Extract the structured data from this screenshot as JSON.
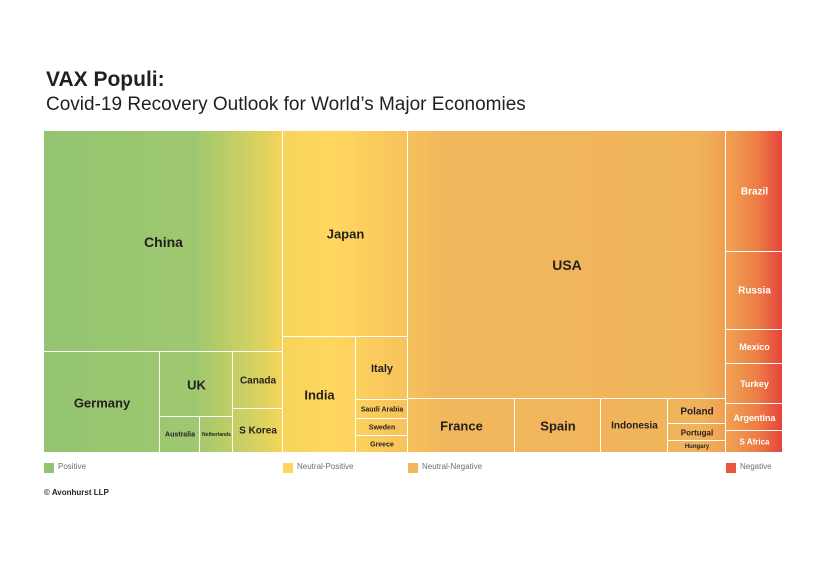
{
  "header": {
    "title": "VAX Populi:",
    "subtitle": "Covid-19 Recovery Outlook for World’s Major Economies"
  },
  "footer": {
    "copyright": "© Avonhurst LLP"
  },
  "colors": {
    "positive": "#94c472",
    "neutral_positive": "#ffd75e",
    "neutral_negative": "#f2b75c",
    "negative": "#e8573d"
  },
  "chart_data": {
    "type": "treemap",
    "title": "",
    "categories": [
      {
        "key": "positive",
        "label": "Positive",
        "color": "#94c472"
      },
      {
        "key": "neutral_positive",
        "label": "Neutral-Positive",
        "color": "#ffd75e"
      },
      {
        "key": "neutral_negative",
        "label": "Neutral-Negative",
        "color": "#f2b75c"
      },
      {
        "key": "negative",
        "label": "Negative",
        "color": "#e8573d"
      }
    ],
    "countries": [
      {
        "name": "China",
        "category": "positive"
      },
      {
        "name": "Germany",
        "category": "positive"
      },
      {
        "name": "UK",
        "category": "positive"
      },
      {
        "name": "Australia",
        "category": "positive"
      },
      {
        "name": "Netherlands",
        "category": "positive"
      },
      {
        "name": "Canada",
        "category": "positive"
      },
      {
        "name": "S Korea",
        "category": "positive"
      },
      {
        "name": "Japan",
        "category": "neutral_positive"
      },
      {
        "name": "India",
        "category": "neutral_positive"
      },
      {
        "name": "Italy",
        "category": "neutral_positive"
      },
      {
        "name": "Saudi Arabia",
        "category": "neutral_positive"
      },
      {
        "name": "Sweden",
        "category": "neutral_positive"
      },
      {
        "name": "Greece",
        "category": "neutral_positive"
      },
      {
        "name": "USA",
        "category": "neutral_negative"
      },
      {
        "name": "France",
        "category": "neutral_negative"
      },
      {
        "name": "Spain",
        "category": "neutral_negative"
      },
      {
        "name": "Indonesia",
        "category": "neutral_negative"
      },
      {
        "name": "Poland",
        "category": "neutral_negative"
      },
      {
        "name": "Portugal",
        "category": "neutral_negative"
      },
      {
        "name": "Hungary",
        "category": "neutral_negative"
      },
      {
        "name": "Brazil",
        "category": "negative"
      },
      {
        "name": "Russia",
        "category": "negative"
      },
      {
        "name": "Mexico",
        "category": "negative"
      },
      {
        "name": "Turkey",
        "category": "negative"
      },
      {
        "name": "Argentina",
        "category": "negative"
      },
      {
        "name": "S Africa",
        "category": "negative"
      }
    ]
  }
}
